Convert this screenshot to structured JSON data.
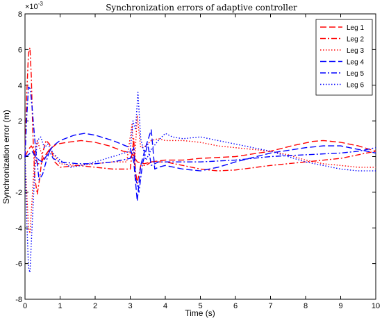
{
  "chart_data": {
    "type": "line",
    "title": "Synchronization errors of adaptive controller",
    "xlabel": "Time (s)",
    "ylabel": "Synchronization error (m)",
    "y_exponent_label": "×10",
    "y_exponent_power": "-3",
    "xlim": [
      0,
      10
    ],
    "ylim": [
      -8,
      8
    ],
    "xticks": [
      "0",
      "1",
      "2",
      "3",
      "4",
      "5",
      "6",
      "7",
      "8",
      "9",
      "10"
    ],
    "yticks": [
      "8",
      "6",
      "4",
      "2",
      "0",
      "-2",
      "-4",
      "-6",
      "-8"
    ],
    "grid": false,
    "legend_position": "top-right",
    "series": [
      {
        "name": "Leg 1",
        "color": "#ff0000",
        "dash": "dashed",
        "points": [
          [
            0,
            0
          ],
          [
            0.1,
            0.4
          ],
          [
            0.18,
            0.6
          ],
          [
            0.26,
            0.3
          ],
          [
            0.35,
            -0.4
          ],
          [
            0.45,
            -0.4
          ],
          [
            0.55,
            0.0
          ],
          [
            0.7,
            0.4
          ],
          [
            0.9,
            0.7
          ],
          [
            1.2,
            0.8
          ],
          [
            1.6,
            0.9
          ],
          [
            2.0,
            0.8
          ],
          [
            2.4,
            0.6
          ],
          [
            2.8,
            0.3
          ],
          [
            3.05,
            0.2
          ],
          [
            3.2,
            -0.3
          ],
          [
            3.4,
            -0.4
          ],
          [
            3.6,
            -0.3
          ],
          [
            4.0,
            -0.2
          ],
          [
            4.5,
            -0.2
          ],
          [
            5.0,
            -0.1
          ],
          [
            6.0,
            0.0
          ],
          [
            7.0,
            0.3
          ],
          [
            7.6,
            0.6
          ],
          [
            8.2,
            0.85
          ],
          [
            8.5,
            0.9
          ],
          [
            9.0,
            0.8
          ],
          [
            9.5,
            0.6
          ],
          [
            10.0,
            0.3
          ]
        ]
      },
      {
        "name": "Leg 2",
        "color": "#ff0000",
        "dash": "dashdot",
        "points": [
          [
            0,
            0
          ],
          [
            0.05,
            3.5
          ],
          [
            0.1,
            5.8
          ],
          [
            0.14,
            6.1
          ],
          [
            0.18,
            4.5
          ],
          [
            0.22,
            1.5
          ],
          [
            0.28,
            -1.2
          ],
          [
            0.35,
            -2.1
          ],
          [
            0.42,
            -1.2
          ],
          [
            0.5,
            0.2
          ],
          [
            0.6,
            0.9
          ],
          [
            0.7,
            0.7
          ],
          [
            0.85,
            -0.3
          ],
          [
            1.0,
            -0.6
          ],
          [
            1.5,
            -0.5
          ],
          [
            2.0,
            -0.6
          ],
          [
            2.5,
            -0.7
          ],
          [
            3.0,
            -0.7
          ],
          [
            3.1,
            1.0
          ],
          [
            3.15,
            -0.8
          ],
          [
            3.2,
            -1.5
          ],
          [
            3.3,
            -0.5
          ],
          [
            3.45,
            -0.5
          ],
          [
            3.6,
            -0.3
          ],
          [
            4.0,
            -0.3
          ],
          [
            4.5,
            -0.5
          ],
          [
            5.0,
            -0.7
          ],
          [
            5.5,
            -0.8
          ],
          [
            6.0,
            -0.75
          ],
          [
            7.0,
            -0.5
          ],
          [
            8.0,
            -0.3
          ],
          [
            9.0,
            -0.1
          ],
          [
            9.5,
            0.1
          ],
          [
            10.0,
            0.3
          ]
        ]
      },
      {
        "name": "Leg 3",
        "color": "#ff0000",
        "dash": "dotted",
        "points": [
          [
            0,
            0
          ],
          [
            0.05,
            -2.0
          ],
          [
            0.1,
            -4.0
          ],
          [
            0.14,
            -4.3
          ],
          [
            0.2,
            -2.5
          ],
          [
            0.28,
            0.2
          ],
          [
            0.35,
            0.9
          ],
          [
            0.45,
            0.3
          ],
          [
            0.55,
            -0.2
          ],
          [
            0.7,
            0.4
          ],
          [
            0.8,
            0.2
          ],
          [
            1.0,
            -0.4
          ],
          [
            1.5,
            -0.5
          ],
          [
            2.0,
            -0.4
          ],
          [
            2.5,
            -0.3
          ],
          [
            2.9,
            -0.3
          ],
          [
            3.05,
            1.8
          ],
          [
            3.12,
            -0.5
          ],
          [
            3.2,
            2.3
          ],
          [
            3.3,
            0.5
          ],
          [
            3.45,
            0.6
          ],
          [
            3.6,
            0.9
          ],
          [
            3.8,
            1.0
          ],
          [
            4.0,
            0.9
          ],
          [
            4.5,
            0.9
          ],
          [
            5.0,
            0.8
          ],
          [
            5.5,
            0.6
          ],
          [
            6.0,
            0.5
          ],
          [
            6.5,
            0.4
          ],
          [
            7.0,
            0.3
          ],
          [
            7.5,
            0.1
          ],
          [
            8.0,
            -0.2
          ],
          [
            8.5,
            -0.4
          ],
          [
            9.0,
            -0.5
          ],
          [
            9.5,
            -0.6
          ],
          [
            10.0,
            -0.6
          ]
        ]
      },
      {
        "name": "Leg 4",
        "color": "#0000ff",
        "dash": "dashed",
        "points": [
          [
            0,
            0
          ],
          [
            0.1,
            0.1
          ],
          [
            0.2,
            0.3
          ],
          [
            0.3,
            0.0
          ],
          [
            0.4,
            -0.2
          ],
          [
            0.5,
            -0.3
          ],
          [
            0.6,
            0.0
          ],
          [
            0.8,
            0.6
          ],
          [
            1.0,
            0.9
          ],
          [
            1.4,
            1.2
          ],
          [
            1.7,
            1.3
          ],
          [
            2.0,
            1.2
          ],
          [
            2.5,
            0.9
          ],
          [
            3.0,
            0.5
          ],
          [
            3.1,
            -0.3
          ],
          [
            3.2,
            -2.5
          ],
          [
            3.3,
            -0.5
          ],
          [
            3.45,
            0.6
          ],
          [
            3.6,
            1.5
          ],
          [
            3.7,
            -0.7
          ],
          [
            3.8,
            -0.6
          ],
          [
            4.0,
            -0.5
          ],
          [
            4.5,
            -0.7
          ],
          [
            5.0,
            -0.8
          ],
          [
            5.5,
            -0.6
          ],
          [
            6.0,
            -0.3
          ],
          [
            7.0,
            0.2
          ],
          [
            8.0,
            0.5
          ],
          [
            8.5,
            0.6
          ],
          [
            9.0,
            0.6
          ],
          [
            9.5,
            0.4
          ],
          [
            10.0,
            0.2
          ]
        ]
      },
      {
        "name": "Leg 5",
        "color": "#0000ff",
        "dash": "dashdot",
        "points": [
          [
            0,
            0
          ],
          [
            0.05,
            2.2
          ],
          [
            0.1,
            3.9
          ],
          [
            0.15,
            3.8
          ],
          [
            0.2,
            2.8
          ],
          [
            0.3,
            0.5
          ],
          [
            0.4,
            -1.3
          ],
          [
            0.5,
            -1.0
          ],
          [
            0.6,
            -0.3
          ],
          [
            0.7,
            0.3
          ],
          [
            0.8,
            -0.1
          ],
          [
            1.0,
            -0.3
          ],
          [
            1.5,
            -0.4
          ],
          [
            2.0,
            -0.4
          ],
          [
            2.5,
            -0.3
          ],
          [
            3.0,
            -0.1
          ],
          [
            3.1,
            0.5
          ],
          [
            3.15,
            -1.2
          ],
          [
            3.25,
            -2.0
          ],
          [
            3.35,
            -0.4
          ],
          [
            3.5,
            0.7
          ],
          [
            3.6,
            -0.5
          ],
          [
            3.8,
            -0.3
          ],
          [
            4.0,
            -0.3
          ],
          [
            5.0,
            -0.3
          ],
          [
            6.0,
            -0.2
          ],
          [
            7.0,
            0.0
          ],
          [
            8.0,
            0.1
          ],
          [
            9.0,
            0.2
          ],
          [
            9.5,
            0.3
          ],
          [
            10.0,
            0.5
          ]
        ]
      },
      {
        "name": "Leg 6",
        "color": "#0000ff",
        "dash": "dotted",
        "points": [
          [
            0,
            0
          ],
          [
            0.05,
            -3.5
          ],
          [
            0.1,
            -6.2
          ],
          [
            0.14,
            -6.5
          ],
          [
            0.2,
            -4.0
          ],
          [
            0.28,
            -0.8
          ],
          [
            0.35,
            0.9
          ],
          [
            0.45,
            1.1
          ],
          [
            0.55,
            0.5
          ],
          [
            0.65,
            0.7
          ],
          [
            0.8,
            0.2
          ],
          [
            1.0,
            -0.2
          ],
          [
            1.3,
            -0.6
          ],
          [
            1.6,
            -0.5
          ],
          [
            2.0,
            -0.3
          ],
          [
            2.5,
            0.0
          ],
          [
            3.0,
            0.3
          ],
          [
            3.08,
            2.0
          ],
          [
            3.15,
            1.5
          ],
          [
            3.22,
            3.6
          ],
          [
            3.3,
            1.0
          ],
          [
            3.45,
            -0.2
          ],
          [
            3.6,
            0.4
          ],
          [
            3.8,
            0.9
          ],
          [
            4.0,
            1.3
          ],
          [
            4.2,
            1.1
          ],
          [
            4.5,
            1.0
          ],
          [
            5.0,
            1.1
          ],
          [
            5.5,
            0.9
          ],
          [
            6.0,
            0.7
          ],
          [
            6.5,
            0.5
          ],
          [
            7.0,
            0.3
          ],
          [
            7.5,
            0.0
          ],
          [
            8.0,
            -0.3
          ],
          [
            8.5,
            -0.5
          ],
          [
            9.0,
            -0.7
          ],
          [
            9.5,
            -0.8
          ],
          [
            10.0,
            -0.8
          ]
        ]
      }
    ]
  }
}
